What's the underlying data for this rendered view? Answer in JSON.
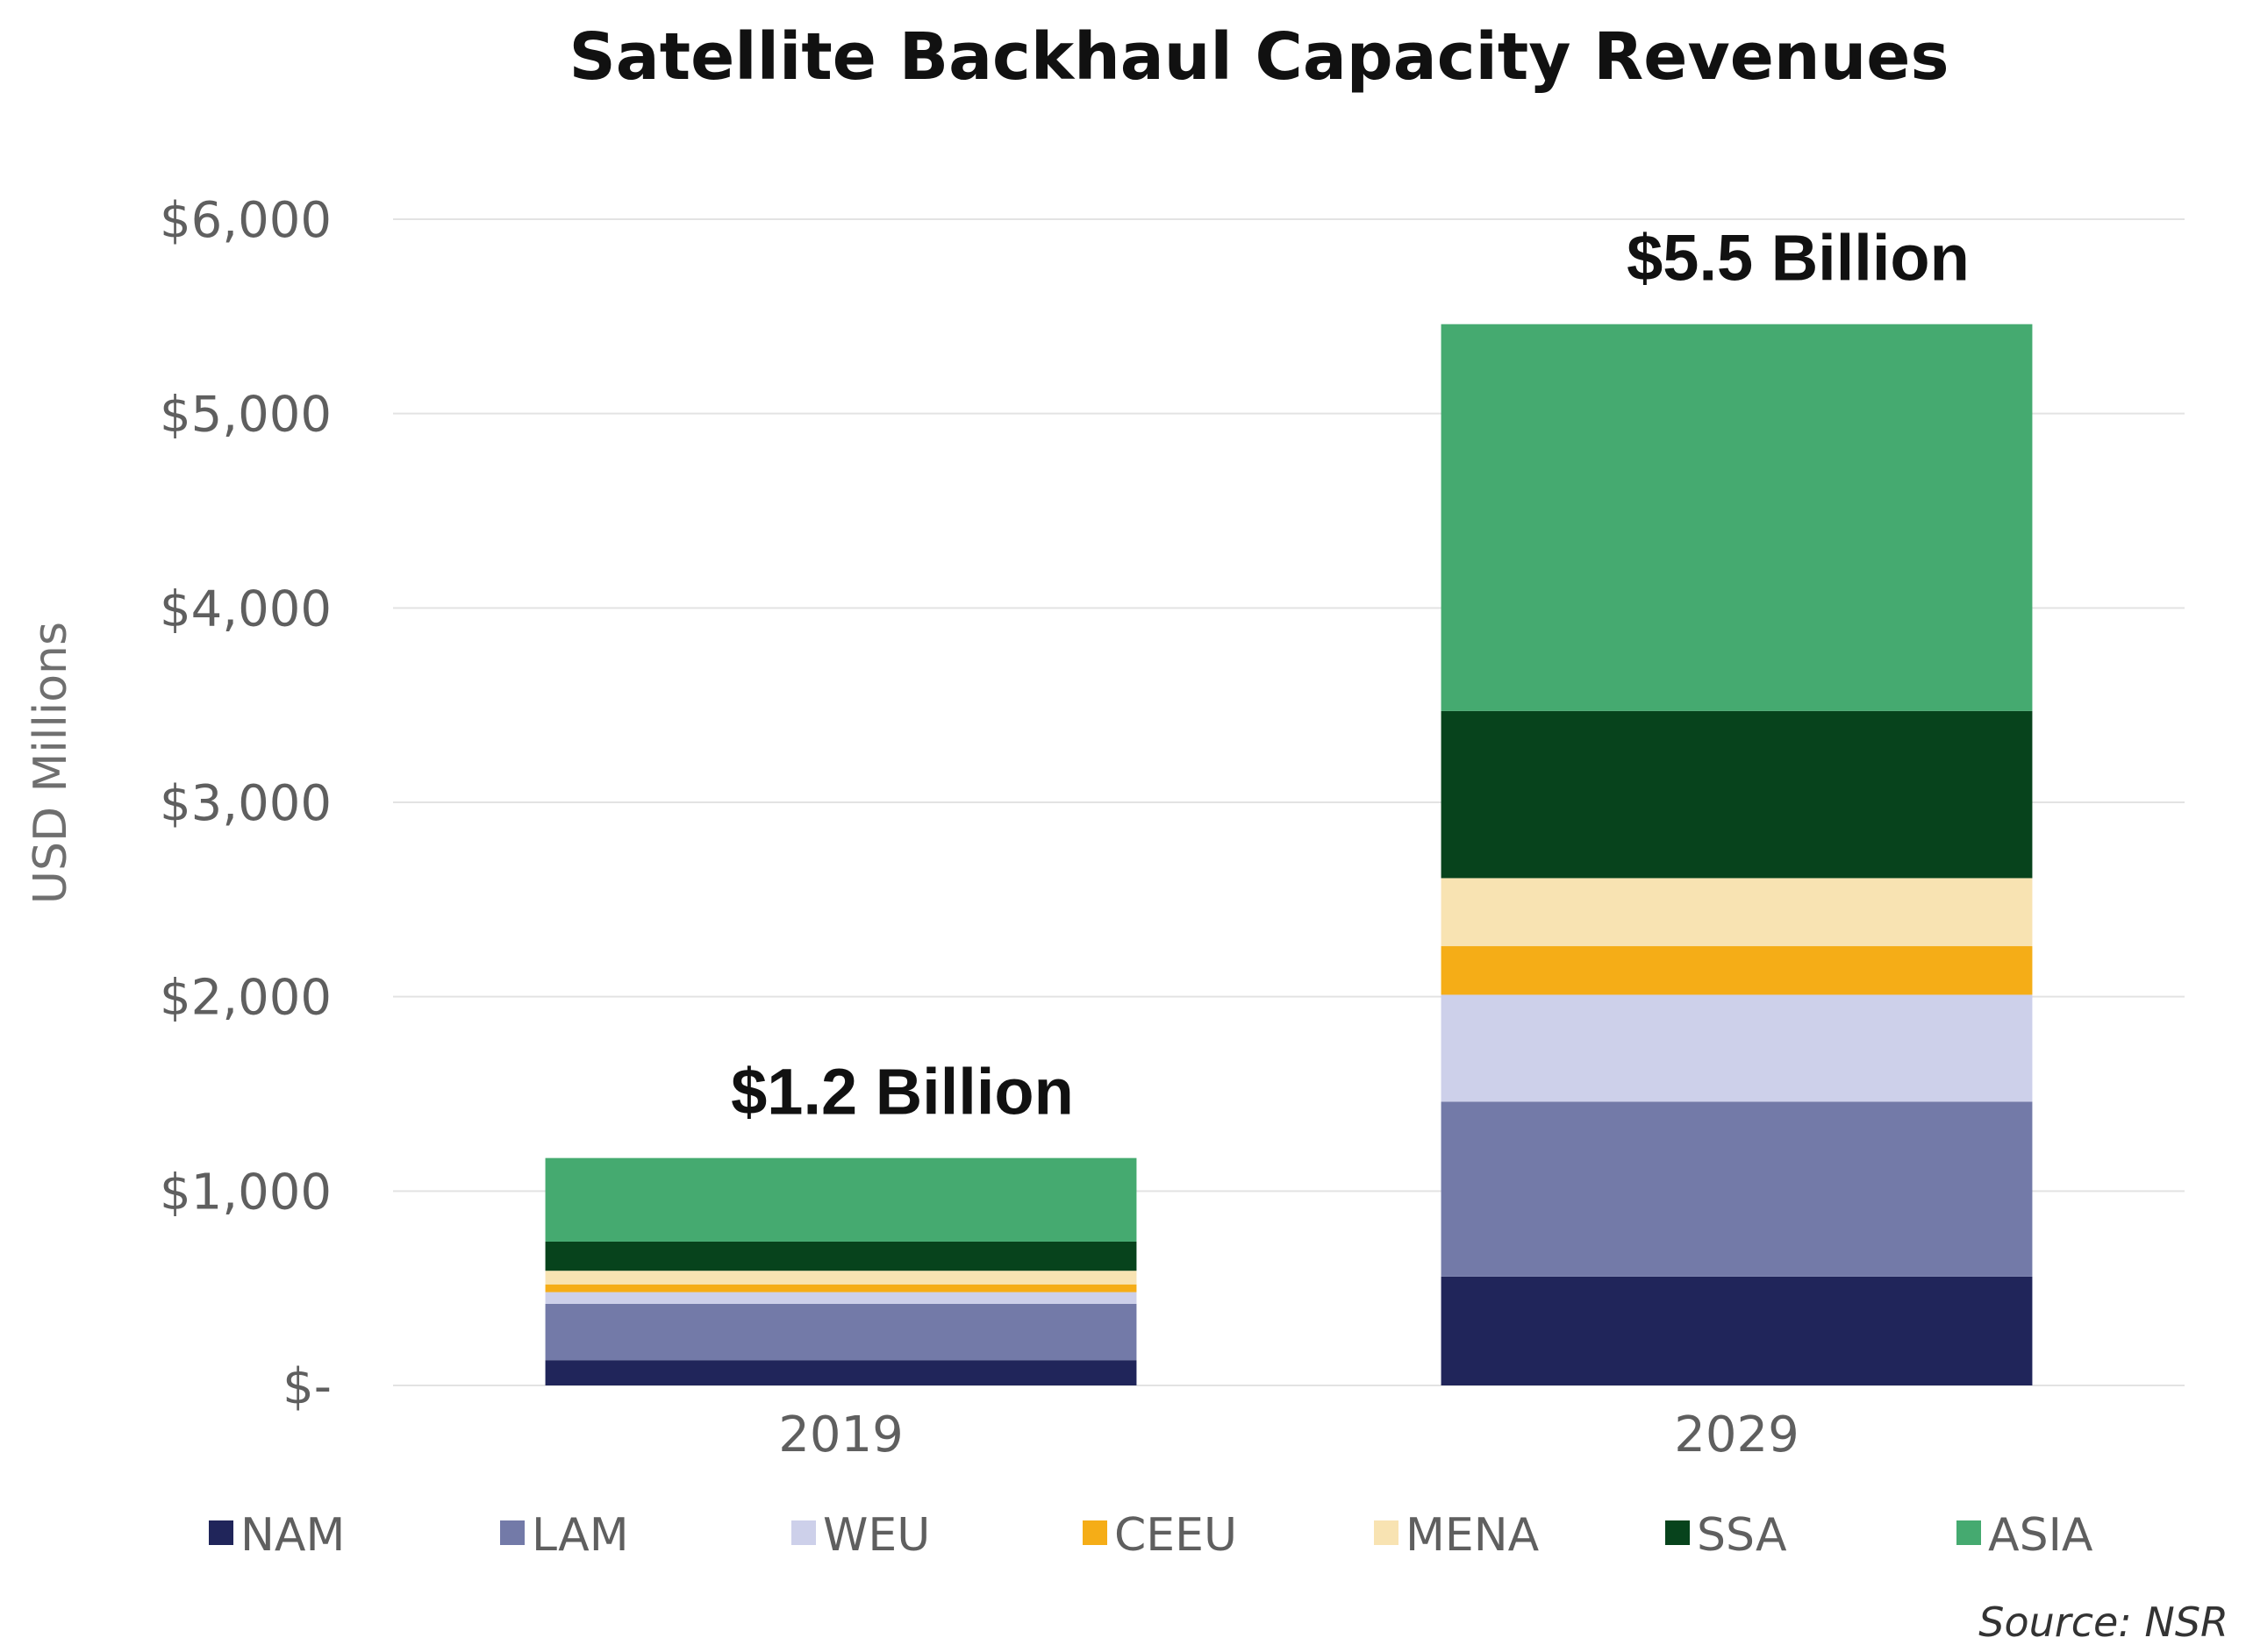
{
  "chart_data": {
    "type": "bar",
    "stacked": true,
    "title": "Satellite Backhaul Capacity Revenues",
    "xlabel": "",
    "ylabel": "USD Millions",
    "ylim": [
      0,
      6000
    ],
    "yticks": [
      0,
      1000,
      2000,
      3000,
      4000,
      5000,
      6000
    ],
    "ytick_labels": [
      "$-",
      "$1,000",
      "$2,000",
      "$3,000",
      "$4,000",
      "$5,000",
      "$6,000"
    ],
    "categories": [
      "2019",
      "2029"
    ],
    "series": [
      {
        "name": "NAM",
        "color": "#20255a",
        "values": [
          130,
          560
        ]
      },
      {
        "name": "LAM",
        "color": "#737aa8",
        "values": [
          290,
          900
        ]
      },
      {
        "name": "WEU",
        "color": "#cdd0ea",
        "values": [
          60,
          550
        ]
      },
      {
        "name": "CEEU",
        "color": "#f5ad17",
        "values": [
          40,
          250
        ]
      },
      {
        "name": "MENA",
        "color": "#f8e3b2",
        "values": [
          70,
          350
        ]
      },
      {
        "name": "SSA",
        "color": "#07431c",
        "values": [
          150,
          860
        ]
      },
      {
        "name": "ASIA",
        "color": "#45aa70",
        "values": [
          430,
          1990
        ]
      }
    ],
    "annotations": [
      {
        "category": "2019",
        "text": "$1.2 Billion"
      },
      {
        "category": "2029",
        "text": "$5.5 Billion"
      }
    ],
    "legend_position": "bottom",
    "source": "Source: NSR",
    "grid": true
  }
}
